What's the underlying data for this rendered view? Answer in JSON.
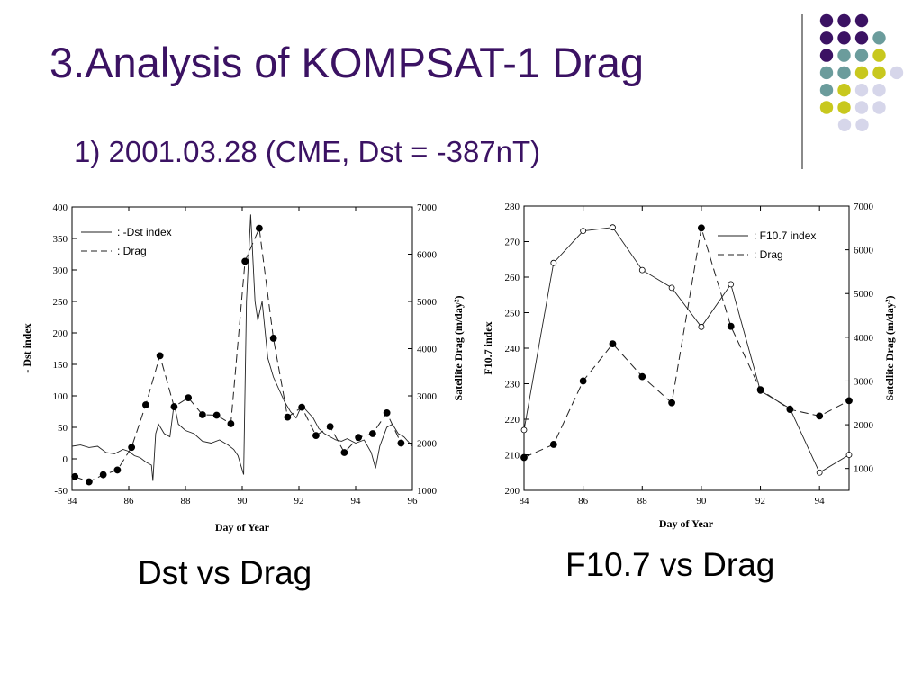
{
  "slide": {
    "title": "3.Analysis of KOMPSAT-1 Drag",
    "subtitle": "1) 2001.03.28  (CME, Dst = -387nT)",
    "captions": [
      "Dst vs Drag",
      "F10.7 vs Drag"
    ]
  },
  "decor": {
    "dot_colors": {
      "purple": "#3b1263",
      "teal": "#6b9c9c",
      "yellow": "#c8c81e",
      "lavender": "#d6d6ea"
    },
    "dot_rows": [
      [
        "purple",
        "purple",
        "purple"
      ],
      [
        "purple",
        "purple",
        "purple",
        "teal"
      ],
      [
        "purple",
        "teal",
        "teal",
        "yellow"
      ],
      [
        "teal",
        "teal",
        "yellow",
        "yellow",
        "lavender"
      ],
      [
        "teal",
        "yellow",
        "lavender",
        "lavender"
      ],
      [
        "yellow",
        "yellow",
        "lavender",
        "lavender"
      ],
      [
        "lavender",
        "lavender"
      ]
    ]
  },
  "chart_data": [
    {
      "type": "line",
      "xlabel": "Day of Year",
      "ylabel": "- Dst index",
      "y2label": "Satellite Drag (m/day²)",
      "xlim": [
        84,
        96
      ],
      "ylim": [
        -50,
        400
      ],
      "y2lim": [
        1000,
        7000
      ],
      "xticks": [
        84,
        86,
        88,
        90,
        92,
        94,
        96
      ],
      "yticks": [
        -50,
        0,
        50,
        100,
        150,
        200,
        250,
        300,
        350,
        400
      ],
      "y2ticks": [
        1000,
        2000,
        3000,
        4000,
        5000,
        6000,
        7000
      ],
      "legend_position": "top-left",
      "legend": [
        ": -Dst index",
        ": Drag"
      ],
      "series": [
        {
          "name": ": -Dst index",
          "axis": "left",
          "style": "solid",
          "points": [
            [
              84,
              20
            ],
            [
              84.3,
              22
            ],
            [
              84.6,
              18
            ],
            [
              84.9,
              20
            ],
            [
              85.2,
              10
            ],
            [
              85.5,
              8
            ],
            [
              85.8,
              15
            ],
            [
              86,
              12
            ],
            [
              86.2,
              5
            ],
            [
              86.4,
              2
            ],
            [
              86.6,
              -5
            ],
            [
              86.8,
              -10
            ],
            [
              86.85,
              -35
            ],
            [
              86.95,
              40
            ],
            [
              87.05,
              55
            ],
            [
              87.25,
              40
            ],
            [
              87.45,
              35
            ],
            [
              87.6,
              88
            ],
            [
              87.75,
              55
            ],
            [
              88,
              45
            ],
            [
              88.3,
              40
            ],
            [
              88.6,
              28
            ],
            [
              88.9,
              25
            ],
            [
              89.2,
              30
            ],
            [
              89.5,
              22
            ],
            [
              89.7,
              15
            ],
            [
              89.85,
              5
            ],
            [
              89.95,
              -10
            ],
            [
              90.05,
              -25
            ],
            [
              90.15,
              250
            ],
            [
              90.3,
              388
            ],
            [
              90.45,
              250
            ],
            [
              90.55,
              220
            ],
            [
              90.7,
              250
            ],
            [
              90.9,
              160
            ],
            [
              91.1,
              130
            ],
            [
              91.3,
              110
            ],
            [
              91.5,
              90
            ],
            [
              91.7,
              75
            ],
            [
              91.9,
              65
            ],
            [
              92.1,
              85
            ],
            [
              92.3,
              75
            ],
            [
              92.5,
              65
            ],
            [
              92.7,
              48
            ],
            [
              92.9,
              40
            ],
            [
              93.1,
              35
            ],
            [
              93.3,
              30
            ],
            [
              93.5,
              28
            ],
            [
              93.7,
              32
            ],
            [
              94,
              25
            ],
            [
              94.3,
              30
            ],
            [
              94.55,
              10
            ],
            [
              94.7,
              -15
            ],
            [
              94.85,
              20
            ],
            [
              95.1,
              50
            ],
            [
              95.3,
              55
            ],
            [
              95.5,
              40
            ],
            [
              95.7,
              35
            ],
            [
              96,
              20
            ]
          ]
        },
        {
          "name": ": Drag",
          "axis": "right",
          "style": "dashed",
          "marker": "filled-circle",
          "points": [
            [
              84.1,
              1290
            ],
            [
              84.6,
              1180
            ],
            [
              85.1,
              1330
            ],
            [
              85.6,
              1430
            ],
            [
              86.1,
              1910
            ],
            [
              86.6,
              2810
            ],
            [
              87.1,
              3850
            ],
            [
              87.6,
              2770
            ],
            [
              88.1,
              2960
            ],
            [
              88.6,
              2600
            ],
            [
              89.1,
              2590
            ],
            [
              89.6,
              2410
            ],
            [
              90.1,
              5850
            ],
            [
              90.6,
              6550
            ],
            [
              91.1,
              4220
            ],
            [
              91.6,
              2550
            ],
            [
              92.1,
              2760
            ],
            [
              92.6,
              2160
            ],
            [
              93.1,
              2350
            ],
            [
              93.6,
              1800
            ],
            [
              94.1,
              2120
            ],
            [
              94.6,
              2200
            ],
            [
              95.1,
              2640
            ],
            [
              95.6,
              2000
            ]
          ]
        }
      ]
    },
    {
      "type": "line",
      "xlabel": "Day of Year",
      "ylabel": "F10.7 index",
      "y2label": "Satellite Drag (m/day²)",
      "xlim": [
        84,
        95
      ],
      "ylim": [
        200,
        280
      ],
      "y2lim": [
        500,
        7000
      ],
      "xticks": [
        84,
        86,
        88,
        90,
        92,
        94
      ],
      "yticks": [
        200,
        210,
        220,
        230,
        240,
        250,
        260,
        270,
        280
      ],
      "y2ticks": [
        1000,
        2000,
        3000,
        4000,
        5000,
        6000,
        7000
      ],
      "legend_position": "top-right",
      "legend": [
        ": F10.7 index",
        ": Drag"
      ],
      "series": [
        {
          "name": ": F10.7 index",
          "axis": "left",
          "style": "solid",
          "marker": "open-circle",
          "points": [
            [
              84,
              217
            ],
            [
              85,
              264
            ],
            [
              86,
              273
            ],
            [
              87,
              274
            ],
            [
              88,
              262
            ],
            [
              89,
              257
            ],
            [
              90,
              246
            ],
            [
              91,
              258
            ],
            [
              92,
              228
            ],
            [
              93,
              223
            ],
            [
              94,
              205
            ],
            [
              95,
              210
            ]
          ]
        },
        {
          "name": ": Drag",
          "axis": "right",
          "style": "dashed",
          "marker": "filled-circle",
          "points": [
            [
              84,
              1250
            ],
            [
              85,
              1550
            ],
            [
              86,
              3000
            ],
            [
              87,
              3850
            ],
            [
              88,
              3100
            ],
            [
              89,
              2500
            ],
            [
              90,
              6500
            ],
            [
              91,
              4250
            ],
            [
              92,
              2800
            ],
            [
              93,
              2350
            ],
            [
              94,
              2200
            ],
            [
              95,
              2550
            ]
          ]
        }
      ]
    }
  ]
}
